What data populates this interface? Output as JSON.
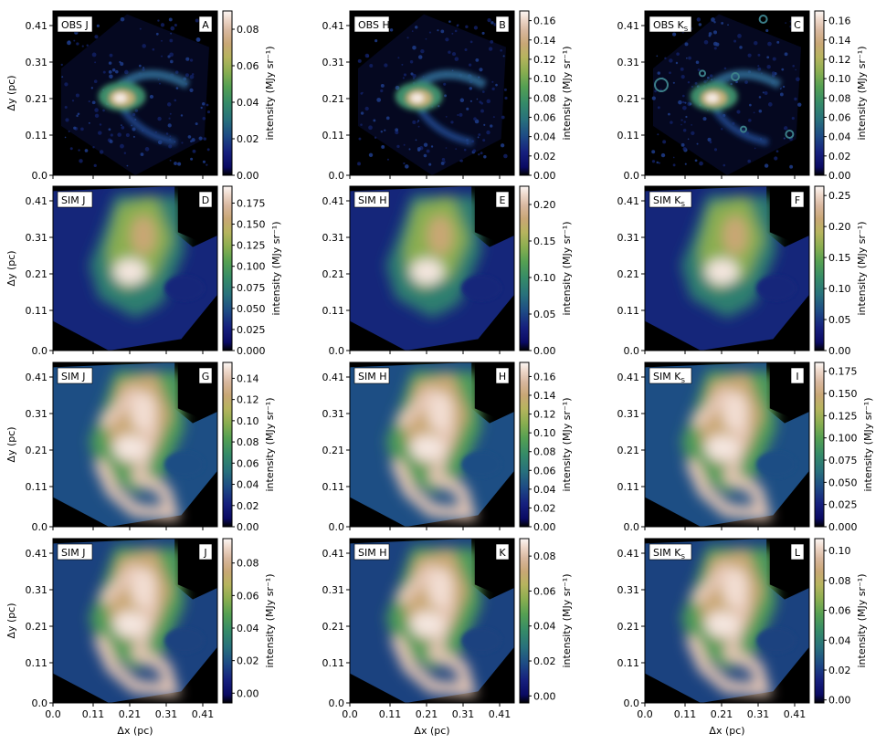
{
  "chart_data": {
    "type": "heatmap",
    "colormap": "gist_earth",
    "grid": false,
    "xlabel": "Δx (pc)",
    "ylabel": "Δy (pc)",
    "colorbar_label": "intensity (MJy sr⁻¹)",
    "xlim": [
      0.0,
      0.45
    ],
    "ylim": [
      0.0,
      0.45
    ],
    "xticks": [
      "0.0",
      "0.11",
      "0.21",
      "0.31",
      "0.41"
    ],
    "yticks": [
      "0.0",
      "0.11",
      "0.21",
      "0.31",
      "0.41"
    ],
    "tick_values": [
      0.0,
      0.11,
      0.21,
      0.31,
      0.41
    ],
    "panels": [
      {
        "letter": "A",
        "kind": "OBS",
        "band": "J",
        "bandsub": "",
        "vmin": 0.0,
        "vmax": 0.09,
        "cbar_ticks": [
          "0.00",
          "0.02",
          "0.04",
          "0.06",
          "0.08"
        ],
        "cbar_values": [
          0.0,
          0.02,
          0.04,
          0.06,
          0.08
        ]
      },
      {
        "letter": "B",
        "kind": "OBS",
        "band": "H",
        "bandsub": "",
        "vmin": 0.0,
        "vmax": 0.17,
        "cbar_ticks": [
          "0.00",
          "0.02",
          "0.04",
          "0.06",
          "0.08",
          "0.10",
          "0.12",
          "0.14",
          "0.16"
        ],
        "cbar_values": [
          0.0,
          0.02,
          0.04,
          0.06,
          0.08,
          0.1,
          0.12,
          0.14,
          0.16
        ]
      },
      {
        "letter": "C",
        "kind": "OBS",
        "band": "K",
        "bandsub": "S",
        "vmin": 0.0,
        "vmax": 0.17,
        "cbar_ticks": [
          "0.00",
          "0.02",
          "0.04",
          "0.06",
          "0.08",
          "0.10",
          "0.12",
          "0.14",
          "0.16"
        ],
        "cbar_values": [
          0.0,
          0.02,
          0.04,
          0.06,
          0.08,
          0.1,
          0.12,
          0.14,
          0.16
        ]
      },
      {
        "letter": "D",
        "kind": "SIM",
        "band": "J",
        "bandsub": "",
        "vmin": 0.0,
        "vmax": 0.195,
        "cbar_ticks": [
          "0.000",
          "0.025",
          "0.050",
          "0.075",
          "0.100",
          "0.125",
          "0.150",
          "0.175"
        ],
        "cbar_values": [
          0.0,
          0.025,
          0.05,
          0.075,
          0.1,
          0.125,
          0.15,
          0.175
        ]
      },
      {
        "letter": "E",
        "kind": "SIM",
        "band": "H",
        "bandsub": "",
        "vmin": 0.0,
        "vmax": 0.225,
        "cbar_ticks": [
          "0.00",
          "0.05",
          "0.10",
          "0.15",
          "0.20"
        ],
        "cbar_values": [
          0.0,
          0.05,
          0.1,
          0.15,
          0.2
        ]
      },
      {
        "letter": "F",
        "kind": "SIM",
        "band": "K",
        "bandsub": "S",
        "vmin": 0.0,
        "vmax": 0.265,
        "cbar_ticks": [
          "0.00",
          "0.05",
          "0.10",
          "0.15",
          "0.20",
          "0.25"
        ],
        "cbar_values": [
          0.0,
          0.05,
          0.1,
          0.15,
          0.2,
          0.25
        ]
      },
      {
        "letter": "G",
        "kind": "SIM",
        "band": "J",
        "bandsub": "",
        "vmin": 0.0,
        "vmax": 0.155,
        "cbar_ticks": [
          "0.00",
          "0.02",
          "0.04",
          "0.06",
          "0.08",
          "0.10",
          "0.12",
          "0.14"
        ],
        "cbar_values": [
          0.0,
          0.02,
          0.04,
          0.06,
          0.08,
          0.1,
          0.12,
          0.14
        ]
      },
      {
        "letter": "H",
        "kind": "SIM",
        "band": "H",
        "bandsub": "",
        "vmin": 0.0,
        "vmax": 0.175,
        "cbar_ticks": [
          "0.00",
          "0.02",
          "0.04",
          "0.06",
          "0.08",
          "0.10",
          "0.12",
          "0.14",
          "0.16"
        ],
        "cbar_values": [
          0.0,
          0.02,
          0.04,
          0.06,
          0.08,
          0.1,
          0.12,
          0.14,
          0.16
        ]
      },
      {
        "letter": "I",
        "kind": "SIM",
        "band": "K",
        "bandsub": "S",
        "vmin": 0.0,
        "vmax": 0.185,
        "cbar_ticks": [
          "0.000",
          "0.025",
          "0.050",
          "0.075",
          "0.100",
          "0.125",
          "0.150",
          "0.175"
        ],
        "cbar_values": [
          0.0,
          0.025,
          0.05,
          0.075,
          0.1,
          0.125,
          0.15,
          0.175
        ]
      },
      {
        "letter": "J",
        "kind": "SIM",
        "band": "J",
        "bandsub": "",
        "vmin": -0.006,
        "vmax": 0.095,
        "cbar_ticks": [
          "0.00",
          "0.02",
          "0.04",
          "0.06",
          "0.08"
        ],
        "cbar_values": [
          0.0,
          0.02,
          0.04,
          0.06,
          0.08
        ]
      },
      {
        "letter": "K",
        "kind": "SIM",
        "band": "H",
        "bandsub": "",
        "vmin": -0.004,
        "vmax": 0.09,
        "cbar_ticks": [
          "0.00",
          "0.02",
          "0.04",
          "0.06",
          "0.08"
        ],
        "cbar_values": [
          0.0,
          0.02,
          0.04,
          0.06,
          0.08
        ]
      },
      {
        "letter": "L",
        "kind": "SIM",
        "band": "K",
        "bandsub": "S",
        "vmin": -0.002,
        "vmax": 0.108,
        "cbar_ticks": [
          "0.00",
          "0.02",
          "0.04",
          "0.06",
          "0.08",
          "0.10"
        ],
        "cbar_values": [
          0.0,
          0.02,
          0.04,
          0.06,
          0.08,
          0.1
        ]
      }
    ]
  }
}
